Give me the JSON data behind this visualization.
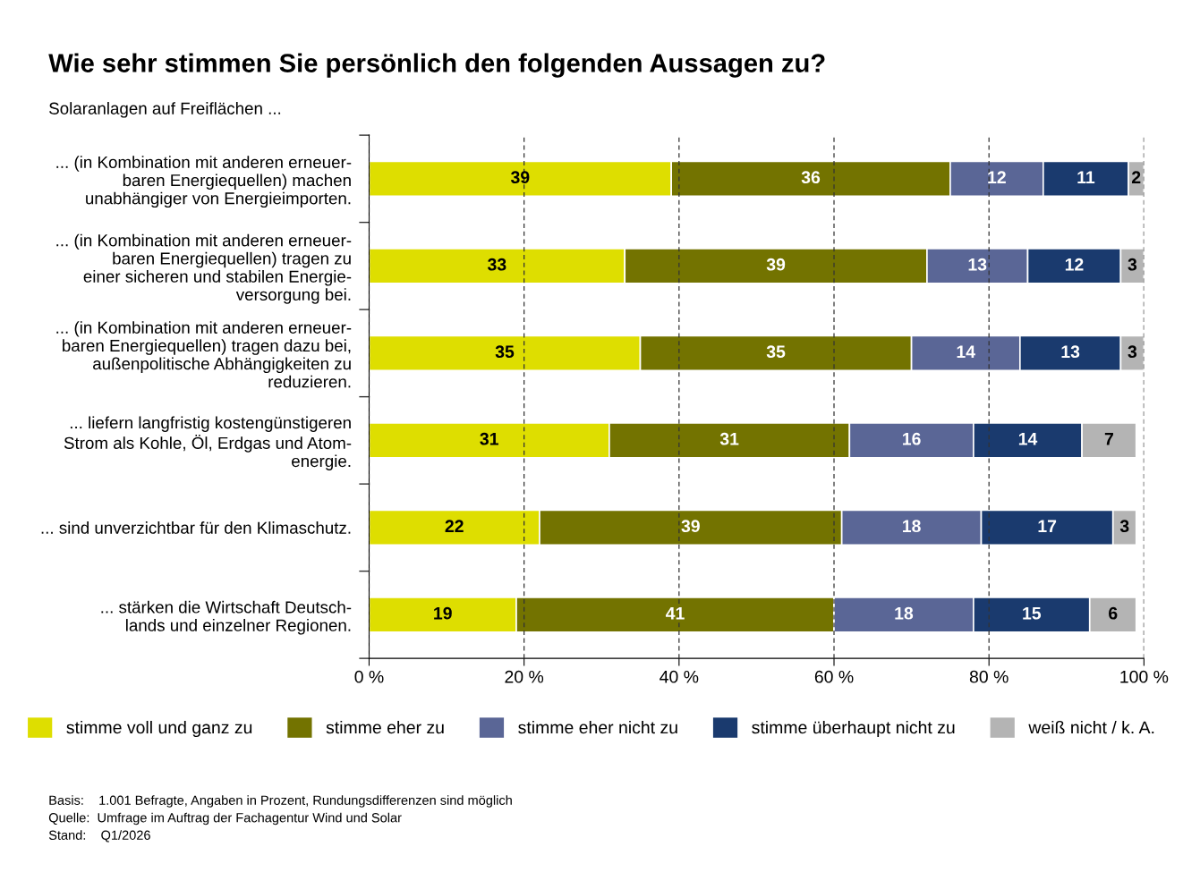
{
  "chart_data": {
    "type": "bar",
    "orientation": "horizontal",
    "stacked": true,
    "title": "Wie sehr stimmen Sie persönlich den folgenden Aussagen zu?",
    "subtitle": "Solaranlagen auf Freiflächen ...",
    "categories": [
      "... (in Kombination mit anderen erneuer-\nbaren Energiequellen) machen\nunabhängiger von Energieimporten.",
      "... (in Kombination mit anderen erneuer-\nbaren Energiequellen) tragen zu\neiner sicheren und stabilen Energie-\nversorgung bei.",
      "... (in Kombination mit anderen erneuer-\nbaren Energiequellen) tragen dazu bei,\naußenpolitische Abhängigkeiten zu\nreduzieren.",
      "... liefern langfristig kostengünstigeren\nStrom als Kohle, Öl, Erdgas und Atom-\nenergie.",
      "... sind unverzichtbar für den Klimaschutz.",
      "... stärken die Wirtschaft Deutsch-\nlands und einzelner Regionen."
    ],
    "series": [
      {
        "name": "stimme voll und ganz zu",
        "color": "#dede00",
        "values": [
          39,
          33,
          35,
          31,
          22,
          19
        ]
      },
      {
        "name": "stimme eher zu",
        "color": "#737300",
        "values": [
          36,
          39,
          35,
          31,
          39,
          41
        ]
      },
      {
        "name": "stimme eher nicht zu",
        "color": "#5a6696",
        "values": [
          12,
          13,
          14,
          16,
          18,
          18
        ]
      },
      {
        "name": "stimme überhaupt nicht zu",
        "color": "#1a3a6e",
        "values": [
          11,
          12,
          13,
          14,
          17,
          15
        ]
      },
      {
        "name": "weiß nicht / k. A.",
        "color": "#b4b4b4",
        "values": [
          2,
          3,
          3,
          7,
          3,
          6
        ]
      }
    ],
    "xlim": [
      0,
      100
    ],
    "xticks": [
      {
        "value": 0,
        "label": "0 %"
      },
      {
        "value": 20,
        "label": "20 %"
      },
      {
        "value": 40,
        "label": "40 %"
      },
      {
        "value": 60,
        "label": "60 %"
      },
      {
        "value": 80,
        "label": "80 %"
      },
      {
        "value": 100,
        "label": "100 %"
      }
    ],
    "grid": "x",
    "line_style": "dashed",
    "data_labels": true,
    "legend": "bottom",
    "annotations": [
      "Basis:    1.001 Befragte, Angaben in Prozent, Rundungsdifferenzen sind möglich",
      "Quelle:  Umfrage im Auftrag der Fachagentur Wind und Solar",
      "Stand:    Q1/2026"
    ]
  }
}
